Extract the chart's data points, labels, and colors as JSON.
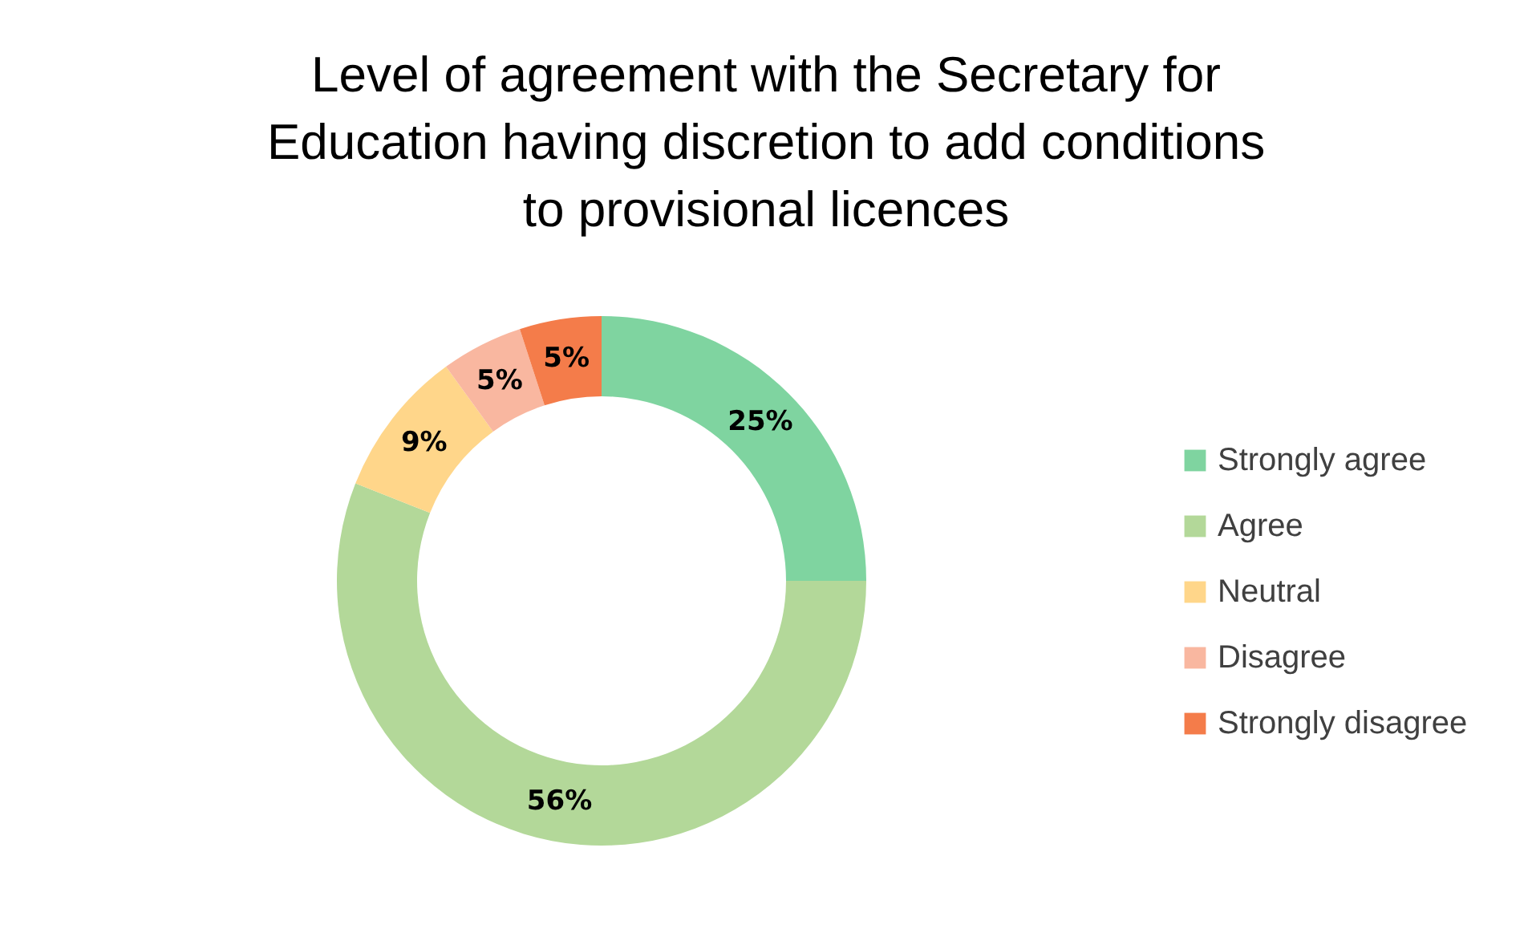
{
  "chart_data": {
    "type": "donut",
    "title": "Level of agreement with the Secretary for Education having discretion to add conditions to provisional licences",
    "categories": [
      "Strongly agree",
      "Agree",
      "Neutral",
      "Disagree",
      "Strongly disagree"
    ],
    "values": [
      25,
      56,
      9,
      5,
      5
    ],
    "colors": [
      "#7fd4a0",
      "#b3d899",
      "#ffd68a",
      "#f9b7a0",
      "#f47c4a"
    ],
    "value_labels": [
      "25%",
      "56%",
      "9%",
      "5%",
      "5%"
    ],
    "legend": "right"
  }
}
